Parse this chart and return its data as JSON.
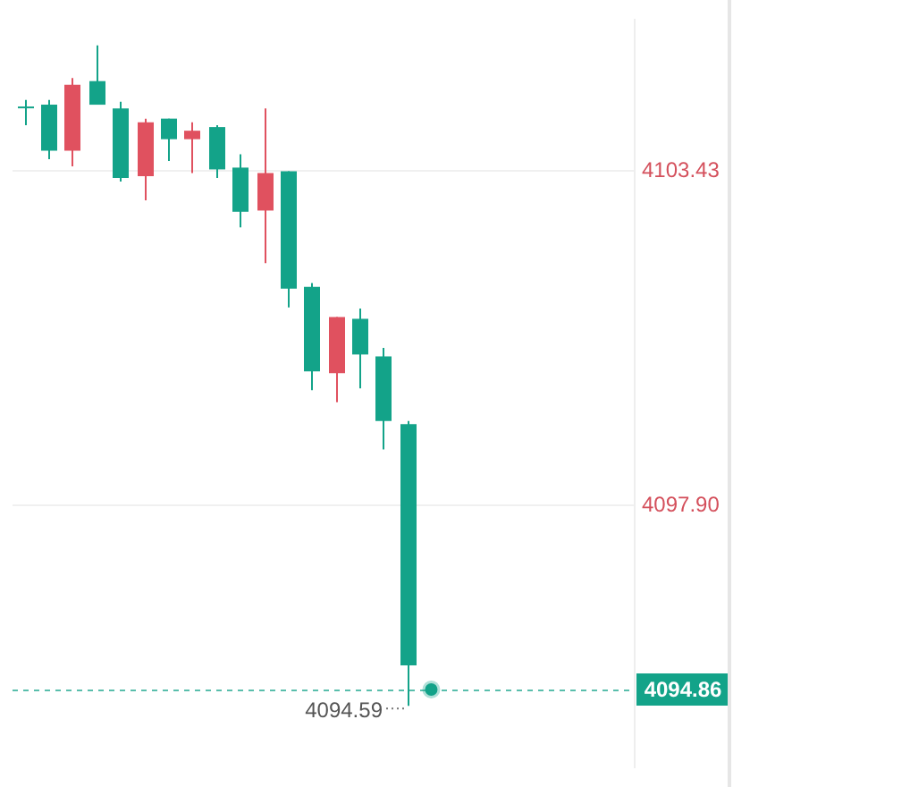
{
  "chart_data": {
    "type": "candlestick",
    "categories": [
      null,
      null,
      null,
      null,
      null,
      null,
      null,
      null,
      null,
      null,
      null,
      null,
      null,
      null,
      null,
      null,
      null,
      null,
      null,
      null,
      null,
      null,
      null,
      null,
      null,
      null
    ],
    "ohlc": [
      [
        4104.5,
        4104.61,
        4104.19,
        4104.5
      ],
      [
        4104.53,
        4104.61,
        4103.63,
        4103.77
      ],
      [
        4103.77,
        4104.97,
        4103.51,
        4104.86
      ],
      [
        4104.92,
        4105.51,
        4104.53,
        4104.53
      ],
      [
        4104.47,
        4104.58,
        4103.26,
        4103.32
      ],
      [
        4103.35,
        4104.3,
        4102.95,
        4104.24
      ],
      [
        4104.3,
        4104.3,
        4103.6,
        4103.96
      ],
      [
        4103.96,
        4104.24,
        4103.4,
        4104.1
      ],
      [
        4104.16,
        4104.19,
        4103.32,
        4103.46
      ],
      [
        4103.49,
        4103.71,
        4102.5,
        4102.76
      ],
      [
        4102.78,
        4104.47,
        4101.91,
        4103.4
      ],
      [
        4103.43,
        4103.43,
        4101.18,
        4101.49
      ],
      [
        4101.52,
        4101.58,
        4099.81,
        4100.12
      ],
      [
        4100.09,
        4101.02,
        4099.61,
        4101.02
      ],
      [
        4100.99,
        4101.16,
        4099.84,
        4100.4
      ],
      [
        4100.37,
        4100.51,
        4098.83,
        4099.3
      ],
      [
        4099.25,
        4099.3,
        4094.59,
        4095.26
      ],
      null,
      null,
      null,
      null,
      null,
      null,
      null,
      null,
      null
    ],
    "colors": [
      "#13a389",
      "#13a389",
      "#e0515f",
      "#13a389",
      "#13a389",
      "#e0515f",
      "#13a389",
      "#e0515f",
      "#13a389",
      "#13a389",
      "#e0515f",
      "#13a389",
      "#13a389",
      "#e0515f",
      "#13a389",
      "#13a389",
      "#13a389",
      null,
      null,
      null,
      null,
      null,
      null,
      null,
      null,
      null
    ],
    "series": [
      {
        "type": "scatter",
        "color": "#13a389",
        "values": [
          null,
          null,
          null,
          null,
          null,
          null,
          null,
          null,
          null,
          null,
          null,
          null,
          null,
          null,
          null,
          null,
          null,
          4094.86,
          null,
          null,
          null,
          null,
          null,
          null,
          null,
          null
        ]
      }
    ],
    "ylim": [
      4093.58,
      4105.93
    ],
    "yticks": [
      4103.43,
      {
        "value": 4097.9,
        "label": "4097.90"
      }
    ],
    "grid": "y",
    "tick_labels": "y",
    "ref_lines": [
      {
        "axis": "y",
        "value": 4094.86,
        "label": "4094.86",
        "color": "#13a389",
        "line_style": "dashed"
      }
    ],
    "annotations": [
      "4094.59"
    ]
  }
}
